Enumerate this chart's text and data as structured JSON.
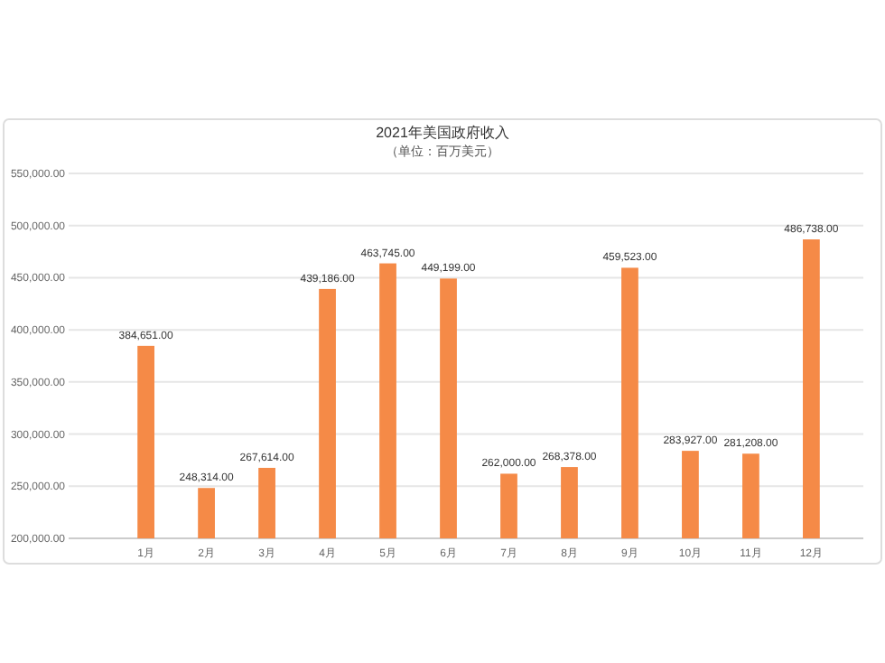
{
  "chart_data": {
    "type": "bar",
    "title": "2021年美国政府收入",
    "subtitle": "（单位：百万美元）",
    "categories": [
      "1月",
      "2月",
      "3月",
      "4月",
      "5月",
      "6月",
      "7月",
      "8月",
      "9月",
      "10月",
      "11月",
      "12月"
    ],
    "values": [
      384651,
      248314,
      267614,
      439186,
      463745,
      449199,
      262000,
      268378,
      459523,
      283927,
      281208,
      486738
    ],
    "value_labels": [
      "384,651.00",
      "248,314.00",
      "267,614.00",
      "439,186.00",
      "463,745.00",
      "449,199.00",
      "262,000.00",
      "268,378.00",
      "459,523.00",
      "283,927.00",
      "281,208.00",
      "486,738.00"
    ],
    "color": "#f58a47",
    "ylim": [
      200000,
      550000
    ],
    "yticks": [
      {
        "value": 200000,
        "label": "200,000.00"
      },
      {
        "value": 250000,
        "label": "250,000.00"
      },
      {
        "value": 300000,
        "label": "300,000.00"
      },
      {
        "value": 350000,
        "label": "350,000.00"
      },
      {
        "value": 400000,
        "label": "400,000.00"
      },
      {
        "value": 450000,
        "label": "450,000.00"
      },
      {
        "value": 500000,
        "label": "500,000.00"
      },
      {
        "value": 550000,
        "label": "550,000.00"
      }
    ],
    "grid": "y"
  }
}
